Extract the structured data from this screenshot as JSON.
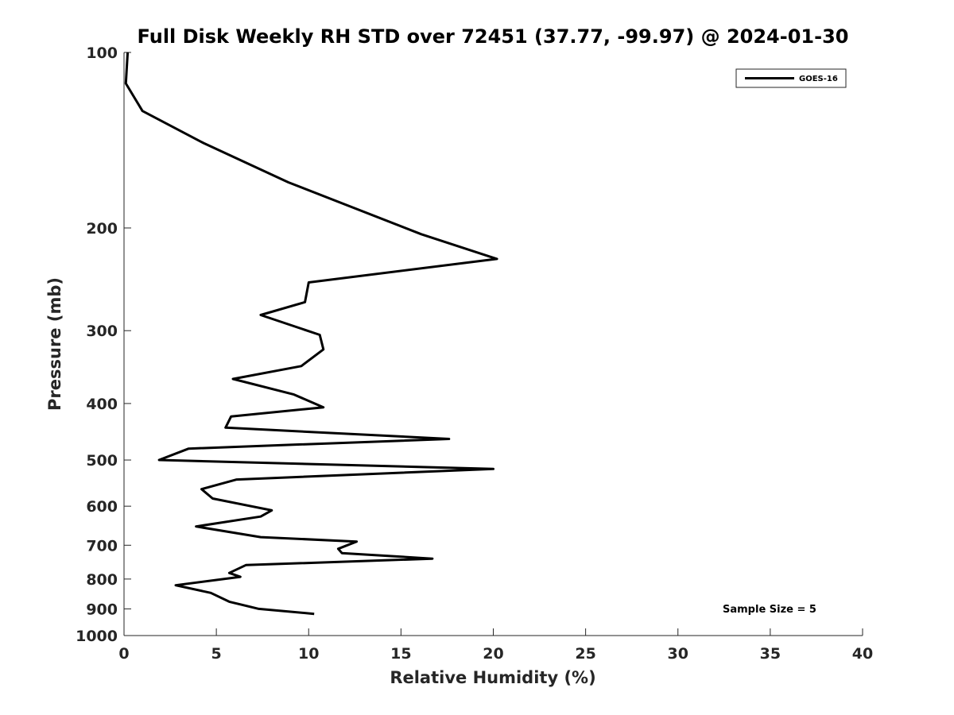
{
  "chart_data": {
    "type": "line",
    "title": "Full Disk Weekly RH STD over 72451 (37.77, -99.97) @ 2024-01-30",
    "xlabel": "Relative Humidity (%)",
    "ylabel": "Pressure (mb)",
    "xlim": [
      0,
      40
    ],
    "ylim": [
      100,
      1000
    ],
    "yscale": "log",
    "y_reversed": true,
    "grid": false,
    "legend_position": "top-right",
    "x_ticks": [
      0,
      5,
      10,
      15,
      20,
      25,
      30,
      35,
      40
    ],
    "x_tick_labels": [
      "0",
      "5",
      "10",
      "15",
      "20",
      "25",
      "30",
      "35",
      "40"
    ],
    "y_ticks": [
      100,
      200,
      300,
      400,
      500,
      600,
      700,
      800,
      900,
      1000
    ],
    "y_tick_labels": [
      "100",
      "200",
      "300",
      "400",
      "500",
      "600",
      "700",
      "800",
      "900",
      "1000"
    ],
    "series": [
      {
        "name": "GOES-16",
        "color": "#000000",
        "x": [
          0.2,
          0.1,
          1.0,
          4.3,
          8.9,
          16.1,
          20.2,
          10.0,
          9.8,
          7.4,
          10.6,
          10.8,
          9.6,
          5.9,
          9.2,
          10.8,
          5.8,
          5.5,
          17.6,
          3.5,
          1.9,
          20.0,
          6.1,
          4.2,
          4.8,
          8.0,
          7.4,
          3.9,
          7.4,
          12.6,
          11.6,
          11.8,
          16.7,
          6.6,
          5.7,
          6.3,
          2.8,
          4.7,
          5.7,
          7.3,
          10.3
        ],
        "y": [
          100,
          113,
          126,
          143,
          167,
          205,
          226,
          248,
          268,
          282,
          305,
          323,
          345,
          363,
          386,
          406,
          421,
          440,
          460,
          478,
          500,
          518,
          540,
          561,
          582,
          610,
          625,
          650,
          678,
          690,
          710,
          722,
          738,
          757,
          781,
          793,
          820,
          845,
          875,
          900,
          918
        ]
      }
    ],
    "annotations": [
      "Sample Size = 5"
    ]
  }
}
